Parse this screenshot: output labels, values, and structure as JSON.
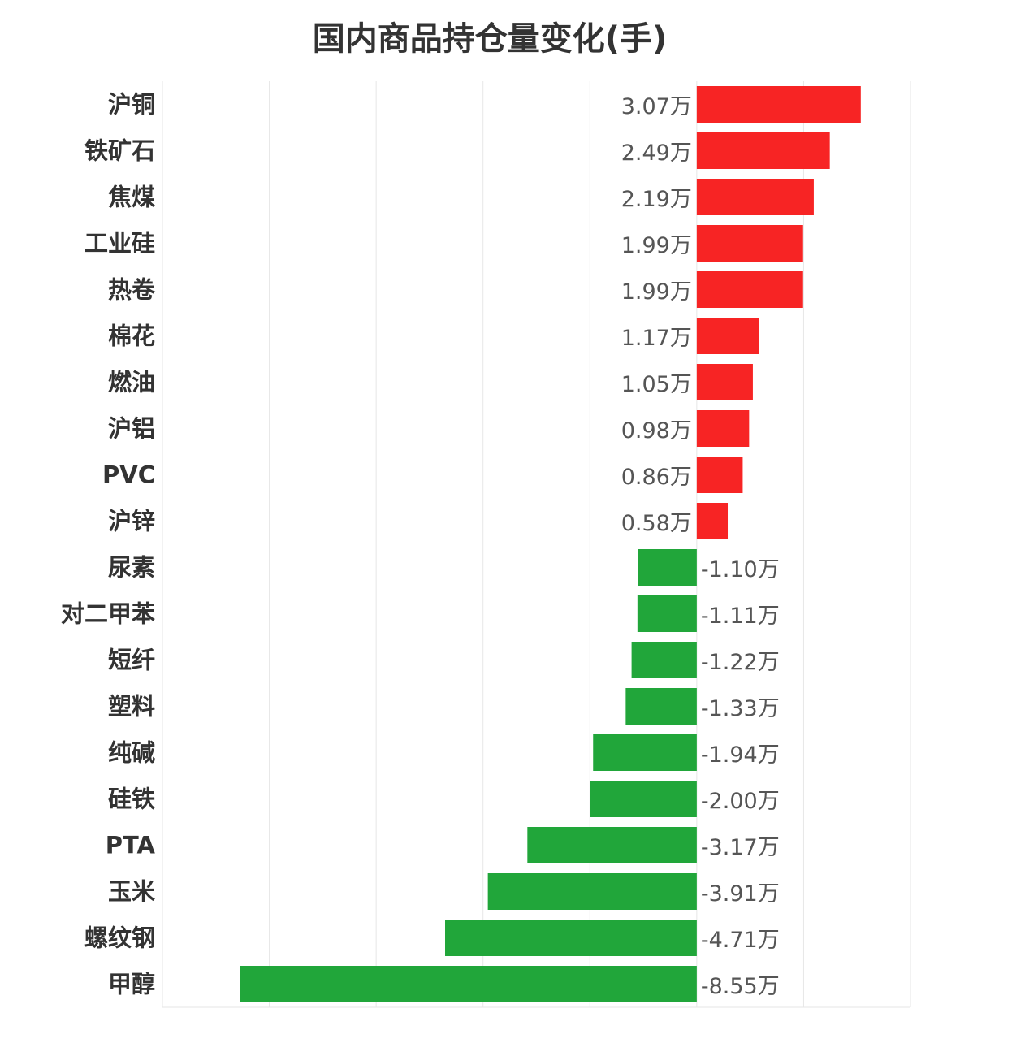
{
  "title": "国内商品持仓量变化(手)",
  "colors": {
    "positive": "#f72424",
    "negative": "#21a63a",
    "grid": "#e6e6e6",
    "label": "#333333",
    "value_label": "#555555"
  },
  "chart_data": {
    "type": "bar",
    "orientation": "horizontal",
    "title": "国内商品持仓量变化(手)",
    "unit": "万",
    "categories": [
      "沪铜",
      "铁矿石",
      "焦煤",
      "工业硅",
      "热卷",
      "棉花",
      "燃油",
      "沪铝",
      "PVC",
      "沪锌",
      "尿素",
      "对二甲苯",
      "短纤",
      "塑料",
      "纯碱",
      "硅铁",
      "PTA",
      "玉米",
      "螺纹钢",
      "甲醇"
    ],
    "values": [
      3.07,
      2.49,
      2.19,
      1.99,
      1.99,
      1.17,
      1.05,
      0.98,
      0.86,
      0.58,
      -1.1,
      -1.11,
      -1.22,
      -1.33,
      -1.94,
      -2.0,
      -3.17,
      -3.91,
      -4.71,
      -8.55
    ],
    "value_labels": [
      "3.07万",
      "2.49万",
      "2.19万",
      "1.99万",
      "1.99万",
      "1.17万",
      "1.05万",
      "0.98万",
      "0.86万",
      "0.58万",
      "-1.10万",
      "-1.11万",
      "-1.22万",
      "-1.33万",
      "-1.94万",
      "-2.00万",
      "-3.17万",
      "-3.91万",
      "-4.71万",
      "-8.55万"
    ],
    "xlim": [
      -10,
      4
    ],
    "grid": true,
    "sorted": "descending",
    "xlabel": "",
    "ylabel": ""
  }
}
